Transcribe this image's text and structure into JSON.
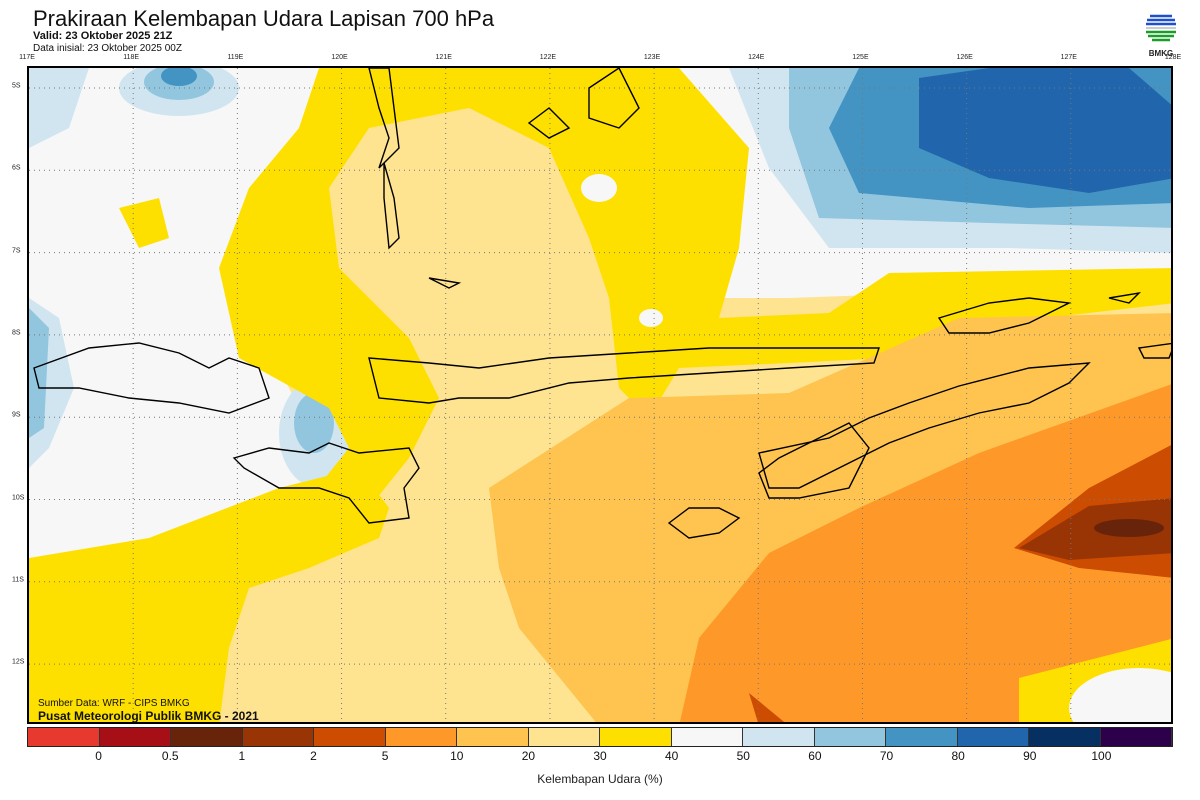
{
  "header": {
    "title": "Prakiraan Kelembapan Udara Lapisan 700 hPa",
    "valid": "Valid: 23 Oktober 2025 21Z",
    "initial": "Data inisial: 23 Oktober 2025 00Z"
  },
  "logo": {
    "text": "BMKG"
  },
  "map": {
    "lon_labels": [
      "117E",
      "118E",
      "119E",
      "120E",
      "121E",
      "122E",
      "123E",
      "124E",
      "125E",
      "126E",
      "127E",
      "128E"
    ],
    "lat_labels": [
      "5S",
      "6S",
      "7S",
      "8S",
      "9S",
      "10S",
      "11S",
      "12S"
    ]
  },
  "credit": {
    "source": "Sumber Data: WRF - CIPS BMKG",
    "org": "Pusat Meteorologi Publik BMKG - 2021"
  },
  "colorbar": {
    "title": "Kelembapan Udara (%)",
    "colors": [
      "#e8392f",
      "#a50f15",
      "#67240b",
      "#993404",
      "#cc4c02",
      "#fe9929",
      "#fec44f",
      "#fee391",
      "#fee000",
      "#f7f7f7",
      "#d1e5f0",
      "#92c5de",
      "#4393c3",
      "#2166ac",
      "#053061",
      "#2d004b"
    ],
    "labels": [
      "0",
      "0.5",
      "1",
      "2",
      "5",
      "10",
      "20",
      "30",
      "40",
      "50",
      "60",
      "70",
      "80",
      "90",
      "100"
    ]
  }
}
